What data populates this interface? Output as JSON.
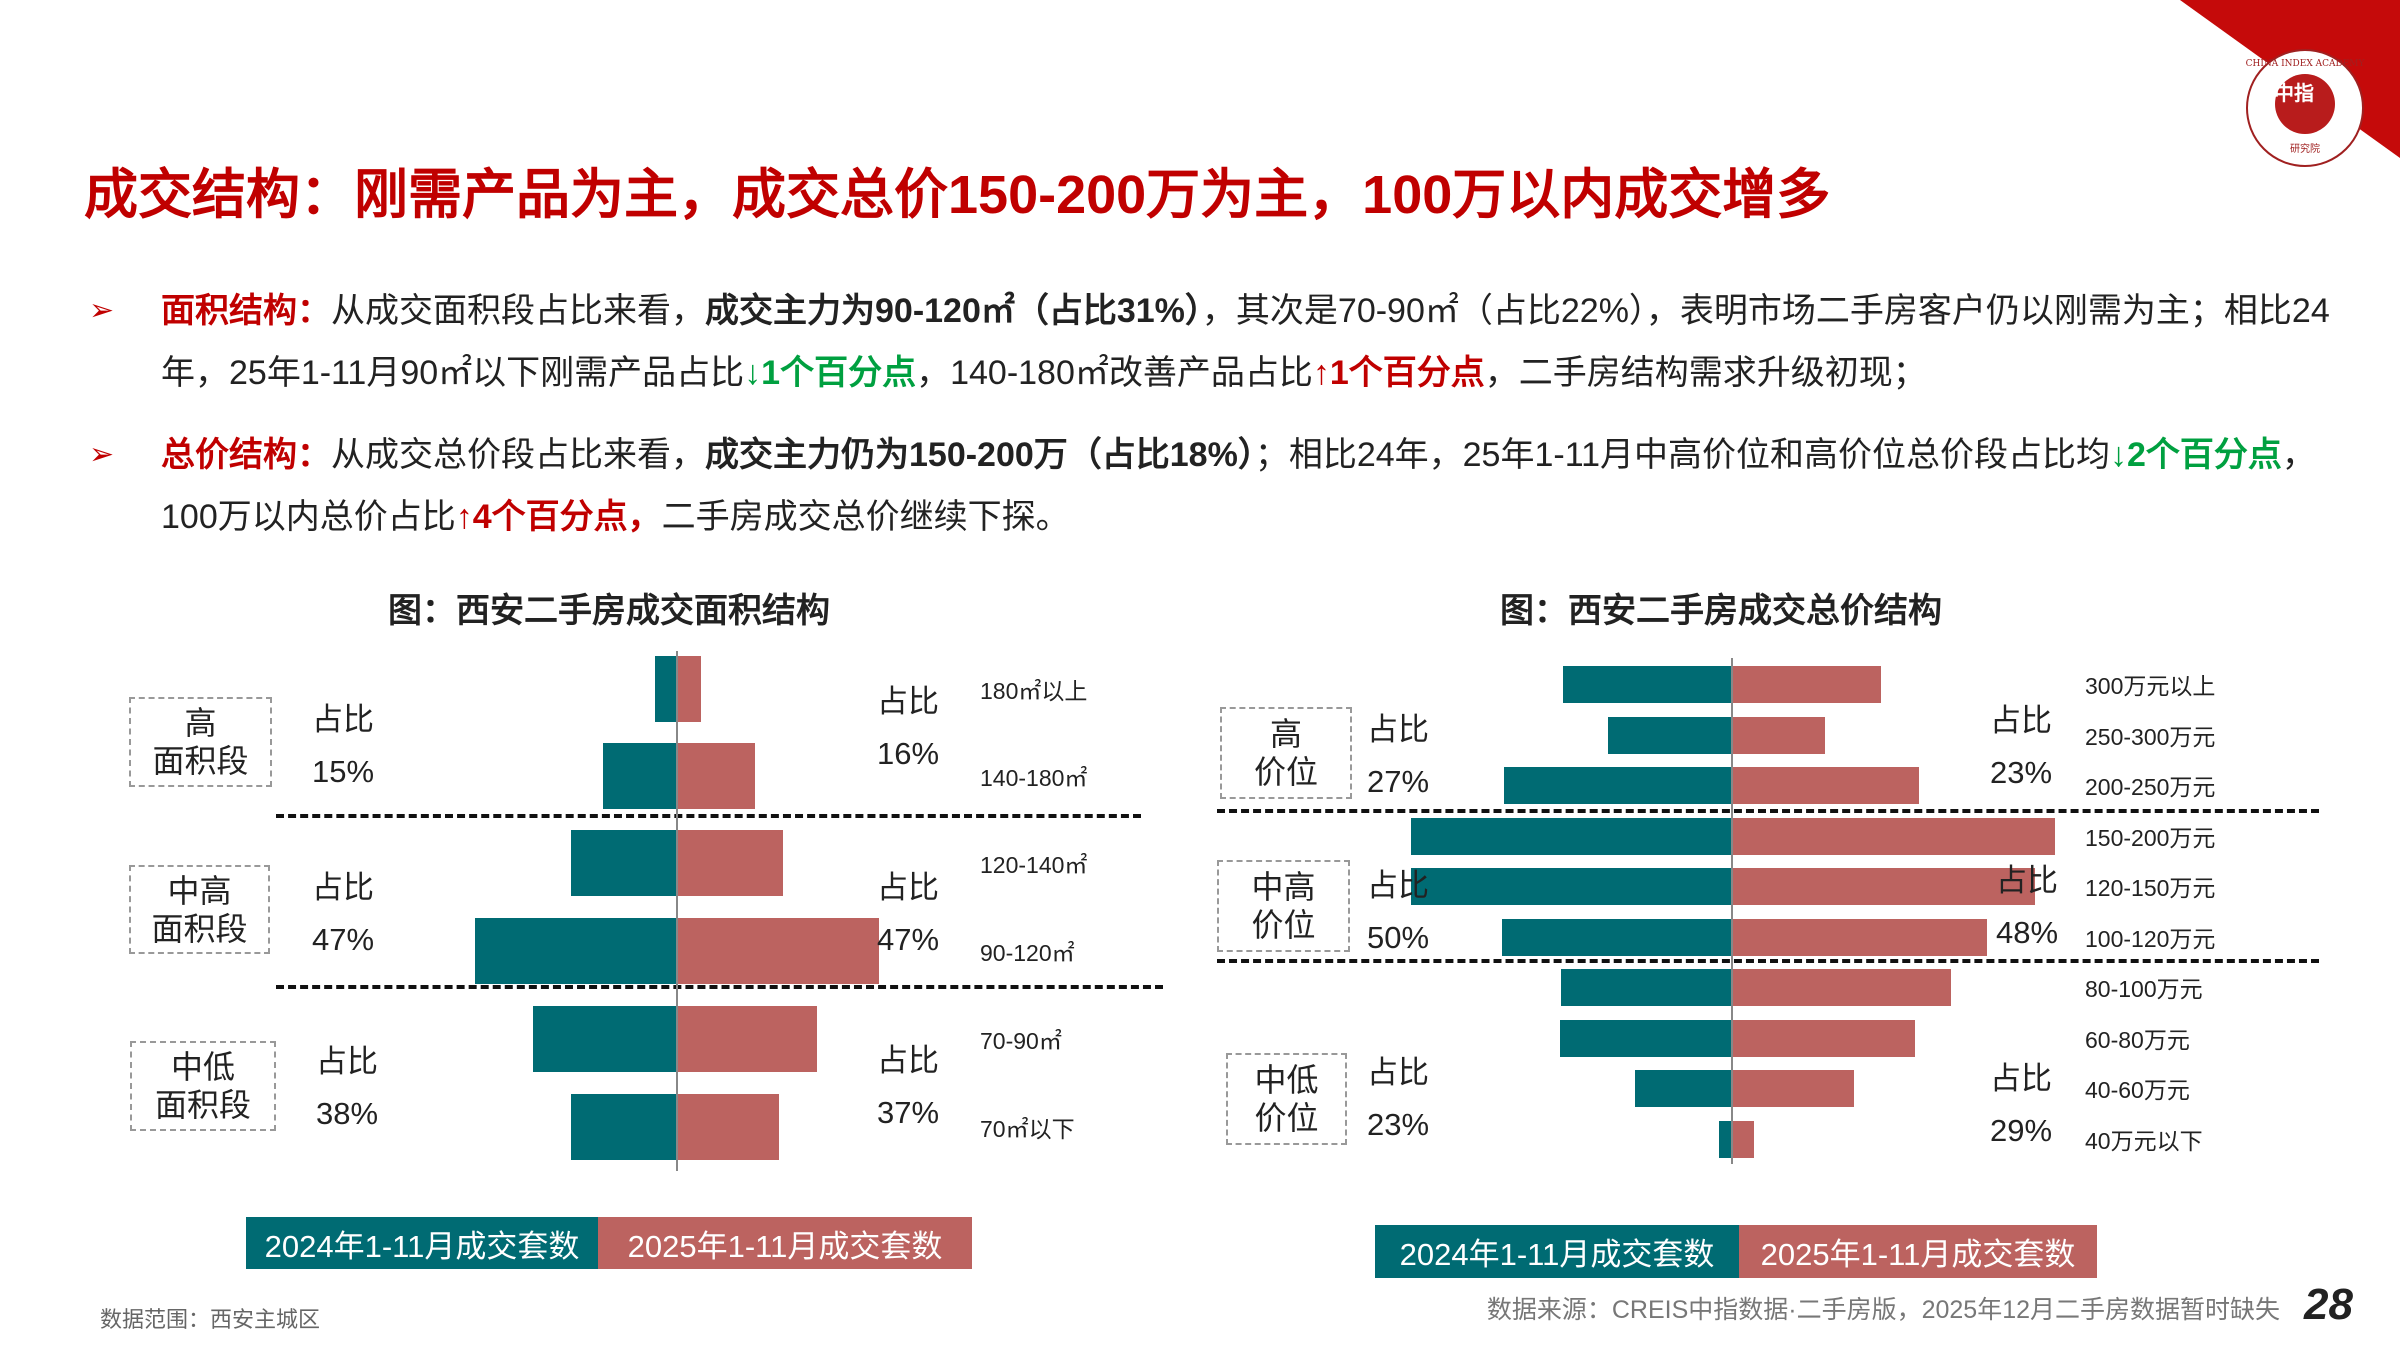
{
  "title": "成交结构：刚需产品为主，成交总价150-200万为主，100万以内成交增多",
  "logo": {
    "text_outer": "CHINA INDEX ACADEMY",
    "text_inner": "中指",
    "text_bottom": "研究院"
  },
  "bullets": [
    {
      "segments": [
        {
          "text": "面积结构：",
          "style": "red"
        },
        {
          "text": "从成交面积段占比来看，",
          "style": ""
        },
        {
          "text": "成交主力为90-120㎡（占比31%）",
          "style": "bold"
        },
        {
          "text": "，其次是70-90㎡（占比22%），表明市场二手房客户仍以刚需为主；相比24年，25年1-11月90㎡以下刚需产品占比",
          "style": ""
        },
        {
          "text": "↓1个百分点",
          "style": "green"
        },
        {
          "text": "，140-180㎡改善产品占比",
          "style": ""
        },
        {
          "text": "↑1个百分点",
          "style": "red"
        },
        {
          "text": "，二手房结构需求升级初现；",
          "style": ""
        }
      ]
    },
    {
      "segments": [
        {
          "text": "总价结构：",
          "style": "red"
        },
        {
          "text": "从成交总价段占比来看，",
          "style": ""
        },
        {
          "text": "成交主力仍为150-200万（占比18%）",
          "style": "bold"
        },
        {
          "text": "；相比24年，25年1-11月中高价位和高价位总价段占比均",
          "style": ""
        },
        {
          "text": "↓2个百分点",
          "style": "green"
        },
        {
          "text": "，100万以内总价占比",
          "style": ""
        },
        {
          "text": "↑4个百分点，",
          "style": "red"
        },
        {
          "text": "二手房成交总价继续下探。",
          "style": ""
        }
      ]
    }
  ],
  "colors": {
    "series_2024": "#006b73",
    "series_2025": "#bc6360",
    "accent": "#c00000"
  },
  "chart_data": [
    {
      "type": "bar",
      "orientation": "horizontal-butterfly",
      "title": "图：西安二手房成交面积结构",
      "unit": "%",
      "categories": [
        "180㎡以上",
        "140-180㎡",
        "120-140㎡",
        "90-120㎡",
        "70-90㎡",
        "70㎡以下"
      ],
      "series": [
        {
          "name": "2024年1-11月成交套数",
          "values": [
            3.3,
            11.3,
            16.2,
            31.0,
            22.1,
            16.2
          ]
        },
        {
          "name": "2025年1-11月成交套数",
          "values": [
            3.7,
            12.0,
            16.3,
            31.0,
            21.5,
            15.6
          ]
        }
      ],
      "groups": [
        {
          "line1": "高",
          "line2": "面积段",
          "label": "占比",
          "left": "15%",
          "right": "16%"
        },
        {
          "line1": "中高",
          "line2": "面积段",
          "label": "占比",
          "left": "47%",
          "right": "47%"
        },
        {
          "line1": "中低",
          "line2": "面积段",
          "label": "占比",
          "left": "38%",
          "right": "37%"
        }
      ]
    },
    {
      "type": "bar",
      "orientation": "horizontal-butterfly",
      "title": "图：西安二手房成交总价结构",
      "unit": "%",
      "categories": [
        "300万元以上",
        "250-300万元",
        "200-250万元",
        "150-200万元",
        "120-150万元",
        "100-120万元",
        "80-100万元",
        "60-80万元",
        "40-60万元",
        "40万元以下"
      ],
      "series": [
        {
          "name": "2024年1-11月成交套数",
          "values": [
            9.4,
            6.9,
            12.7,
            17.9,
            17.9,
            12.8,
            9.5,
            9.6,
            5.4,
            0.7
          ]
        },
        {
          "name": "2025年1-11月成交套数",
          "values": [
            8.3,
            5.2,
            10.4,
            18.0,
            16.9,
            14.2,
            12.2,
            10.2,
            6.8,
            1.2
          ]
        }
      ],
      "groups": [
        {
          "line1": "高",
          "line2": "价位",
          "label": "占比",
          "left": "27%",
          "right": "23%"
        },
        {
          "line1": "中高",
          "line2": "价位",
          "label": "占比",
          "left": "50%",
          "right": "48%"
        },
        {
          "line1": "中低",
          "line2": "价位",
          "label": "占比",
          "left": "23%",
          "right": "29%"
        }
      ]
    }
  ],
  "footer": {
    "scope": "数据范围：西安主城区",
    "source": "数据来源：CREIS中指数据·二手房版，2025年12月二手房数据暂时缺失",
    "page": "28"
  }
}
